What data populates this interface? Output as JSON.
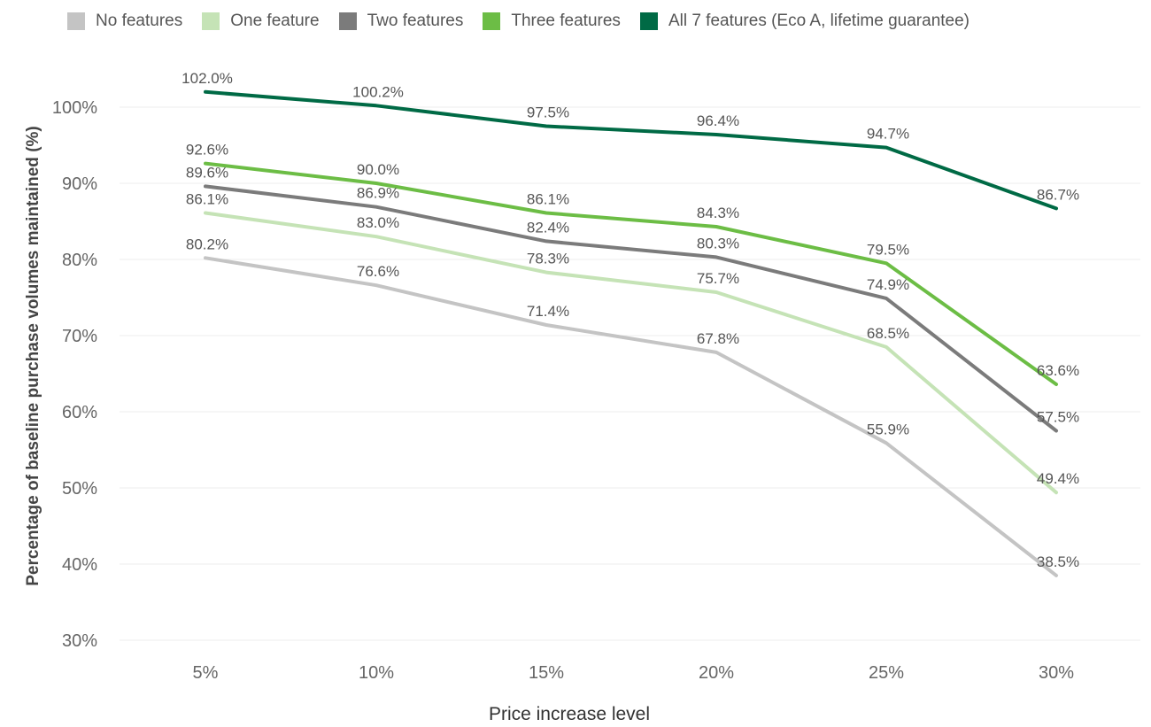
{
  "chart_data": {
    "type": "line",
    "title": "",
    "xlabel": "Price increase level",
    "ylabel": "Percentage of baseline purchase volumes maintained (%)",
    "categories": [
      "5%",
      "10%",
      "15%",
      "20%",
      "25%",
      "30%"
    ],
    "ylim": [
      30,
      105
    ],
    "yticks": [
      30,
      40,
      50,
      60,
      70,
      80,
      90,
      100
    ],
    "ytick_labels": [
      "30%",
      "40%",
      "50%",
      "60%",
      "70%",
      "80%",
      "90%",
      "100%"
    ],
    "grid": true,
    "legend_position": "top-left",
    "series": [
      {
        "name": "No features",
        "color": "#c4c4c4",
        "values": [
          80.2,
          76.6,
          71.4,
          67.8,
          55.9,
          38.5
        ],
        "labels": [
          "80.2%",
          "76.6%",
          "71.4%",
          "67.8%",
          "55.9%",
          "38.5%"
        ]
      },
      {
        "name": "One feature",
        "color": "#c5e3b6",
        "values": [
          86.1,
          83.0,
          78.3,
          75.7,
          68.5,
          49.4
        ],
        "labels": [
          "86.1%",
          "83.0%",
          "78.3%",
          "75.7%",
          "68.5%",
          "49.4%"
        ]
      },
      {
        "name": "Two features",
        "color": "#7b7b7b",
        "values": [
          89.6,
          86.9,
          82.4,
          80.3,
          74.9,
          57.5
        ],
        "labels": [
          "89.6%",
          "86.9%",
          "82.4%",
          "80.3%",
          "74.9%",
          "57.5%"
        ]
      },
      {
        "name": "Three features",
        "color": "#6cbd45",
        "values": [
          92.6,
          90.0,
          86.1,
          84.3,
          79.5,
          63.6
        ],
        "labels": [
          "92.6%",
          "90.0%",
          "86.1%",
          "84.3%",
          "79.5%",
          "63.6%"
        ]
      },
      {
        "name": "All 7 features (Eco A, lifetime guarantee)",
        "color": "#006a45",
        "values": [
          102.0,
          100.2,
          97.5,
          96.4,
          94.7,
          86.7
        ],
        "labels": [
          "102.0%",
          "100.2%",
          "97.5%",
          "96.4%",
          "94.7%",
          "86.7%"
        ]
      }
    ]
  }
}
